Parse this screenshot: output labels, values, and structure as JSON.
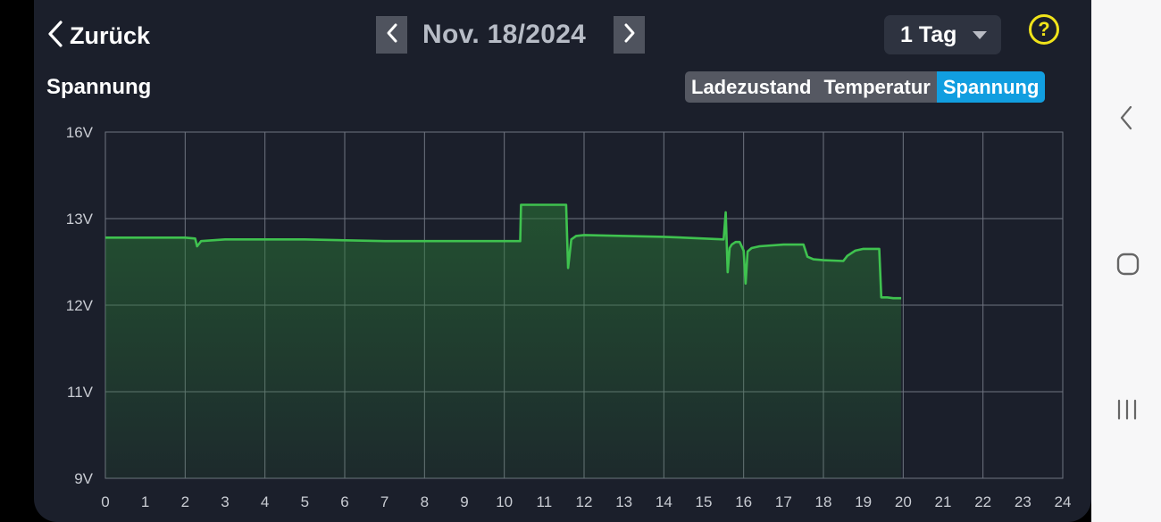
{
  "header": {
    "back_label": "Zurück",
    "date": "Nov. 18/2024",
    "range": "1 Tag",
    "help": "?"
  },
  "section_title": "Spannung",
  "tabs": [
    {
      "label": "Ladezustand",
      "active": false
    },
    {
      "label": "Temperatur",
      "active": false
    },
    {
      "label": "Spannung",
      "active": true
    }
  ],
  "colors": {
    "background": "#1b1f2b",
    "line": "#3fc24f",
    "fill": "#2a7a36",
    "tab_active": "#119ee0",
    "help": "#f0e31a"
  },
  "system_nav": [
    "back-icon",
    "home-icon",
    "recents-icon"
  ],
  "chart_data": {
    "type": "line",
    "title": "",
    "xlabel": "",
    "ylabel": "",
    "grid": true,
    "x_ticks": [
      "0",
      "1",
      "2",
      "3",
      "4",
      "5",
      "6",
      "7",
      "8",
      "9",
      "10",
      "11",
      "12",
      "13",
      "14",
      "15",
      "16",
      "17",
      "18",
      "19",
      "20",
      "21",
      "22",
      "23",
      "24"
    ],
    "y_ticks": [
      "9V",
      "11V",
      "12V",
      "13V",
      "16V"
    ],
    "y_tick_values": [
      9,
      11,
      12,
      13,
      16
    ],
    "xlim": [
      0,
      24
    ],
    "series": [
      {
        "x": [
          0,
          1,
          2,
          2.25,
          2.3,
          2.4,
          3,
          5,
          7,
          9,
          10.4,
          10.42,
          11.55,
          11.6,
          11.68,
          11.8,
          12,
          13,
          14,
          15,
          15.5,
          15.55,
          15.6,
          15.65,
          15.7,
          15.8,
          15.9,
          16.0,
          16.05,
          16.1,
          16.2,
          16.4,
          17,
          17.5,
          17.6,
          17.75,
          18,
          18.5,
          18.6,
          18.8,
          19,
          19.4,
          19.45,
          19.6,
          19.75,
          19.95
        ],
        "y": [
          12.78,
          12.78,
          12.78,
          12.77,
          12.68,
          12.74,
          12.76,
          12.76,
          12.74,
          12.74,
          12.74,
          13.48,
          13.48,
          12.43,
          12.76,
          12.8,
          12.81,
          12.8,
          12.79,
          12.77,
          12.76,
          13.22,
          12.38,
          12.66,
          12.7,
          12.73,
          12.73,
          12.63,
          12.25,
          12.62,
          12.66,
          12.68,
          12.7,
          12.7,
          12.56,
          12.53,
          12.52,
          12.51,
          12.57,
          12.63,
          12.65,
          12.65,
          12.09,
          12.09,
          12.08,
          12.08
        ]
      }
    ]
  }
}
